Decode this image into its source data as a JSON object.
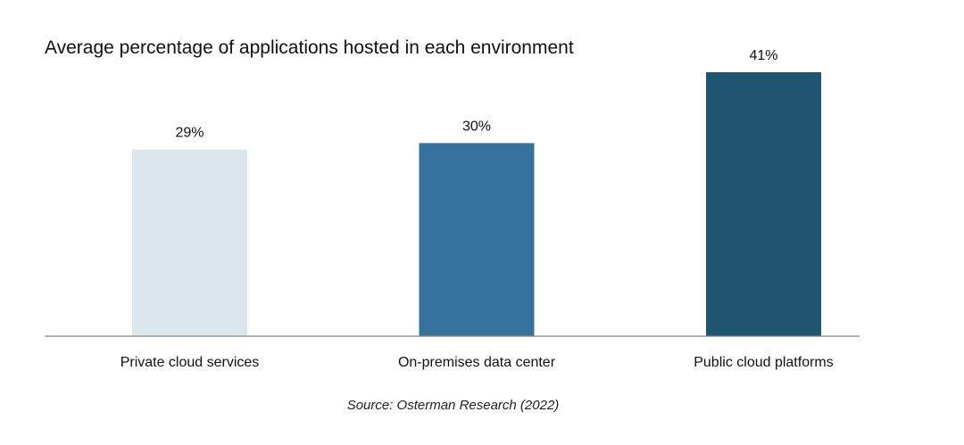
{
  "chart_data": {
    "type": "bar",
    "title": "Average percentage of applications hosted in each environment",
    "categories": [
      "Private cloud services",
      "On-premises data center",
      "Public cloud platforms"
    ],
    "values": [
      29,
      30,
      41
    ],
    "value_labels": [
      "29%",
      "30%",
      "41%"
    ],
    "bar_colors": [
      "#dce6ed",
      "#37729c",
      "#1e5470"
    ],
    "ylim": [
      0,
      41
    ],
    "grid": false,
    "legend": "none",
    "source": "Source: Osterman Research (2022)"
  }
}
